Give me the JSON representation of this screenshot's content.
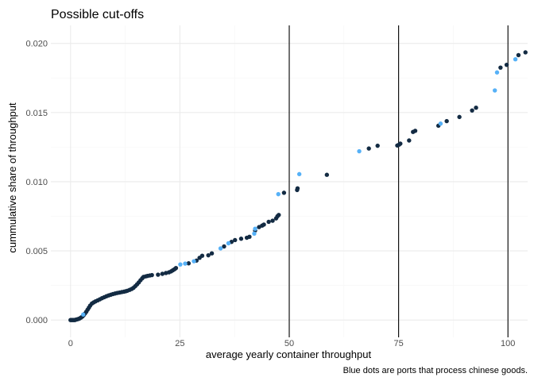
{
  "chart_data": {
    "type": "scatter",
    "title": "Possible cut-offs",
    "xlabel": "average yearly container throughput",
    "ylabel": "cummulative share of throughput",
    "caption": "Blue dots are ports that process chinese goods.",
    "xlim": [
      -4.5,
      104.5
    ],
    "ylim": [
      -0.00125,
      0.0213
    ],
    "x_ticks": [
      0,
      25,
      50,
      75,
      100
    ],
    "x_tick_labels": [
      "0",
      "25",
      "50",
      "75",
      "100"
    ],
    "y_ticks": [
      0.0,
      0.005,
      0.01,
      0.015,
      0.02
    ],
    "y_tick_labels": [
      "0.000",
      "0.005",
      "0.010",
      "0.015",
      "0.020"
    ],
    "vlines": [
      50,
      75,
      100
    ],
    "grid": true,
    "colors": {
      "default": "#132b43",
      "chinese": "#56b1f7",
      "vline": "#000000",
      "grid_major": "#ebebeb",
      "grid_minor": "#f5f5f5"
    },
    "series": [
      {
        "color": "#132b43",
        "points": [
          [
            0.0,
            0.0
          ],
          [
            0.2,
            0.0
          ],
          [
            0.4,
            0.0
          ],
          [
            0.6,
            0.0
          ],
          [
            0.8,
            0.0
          ],
          [
            1.0,
            0.0
          ],
          [
            1.2,
            3e-05
          ],
          [
            1.5,
            5e-05
          ],
          [
            1.8,
            8e-05
          ],
          [
            2.1,
            0.00012
          ],
          [
            2.4,
            0.00018
          ],
          [
            2.7,
            0.00025
          ],
          [
            3.0,
            0.00035
          ],
          [
            3.3,
            0.00047
          ],
          [
            3.6,
            0.0006
          ],
          [
            3.9,
            0.00075
          ],
          [
            4.2,
            0.0009
          ],
          [
            4.5,
            0.00105
          ],
          [
            4.9,
            0.0012
          ],
          [
            5.3,
            0.00128
          ],
          [
            5.7,
            0.00135
          ],
          [
            6.2,
            0.00142
          ],
          [
            6.7,
            0.0015
          ],
          [
            7.2,
            0.00158
          ],
          [
            7.7,
            0.00165
          ],
          [
            8.2,
            0.00172
          ],
          [
            8.7,
            0.00178
          ],
          [
            9.2,
            0.00183
          ],
          [
            9.7,
            0.00188
          ],
          [
            10.2,
            0.00192
          ],
          [
            10.7,
            0.00196
          ],
          [
            11.2,
            0.00199
          ],
          [
            11.7,
            0.00202
          ],
          [
            12.2,
            0.00205
          ],
          [
            12.6,
            0.00208
          ],
          [
            13.0,
            0.00212
          ],
          [
            13.5,
            0.00218
          ],
          [
            14.0,
            0.00225
          ],
          [
            14.4,
            0.00233
          ],
          [
            14.8,
            0.00245
          ],
          [
            15.2,
            0.00258
          ],
          [
            15.6,
            0.00272
          ],
          [
            16.0,
            0.00288
          ],
          [
            16.4,
            0.00302
          ],
          [
            16.7,
            0.00312
          ],
          [
            17.2,
            0.00316
          ],
          [
            17.6,
            0.00319
          ],
          [
            18.1,
            0.00322
          ],
          [
            18.6,
            0.00325
          ],
          [
            20.0,
            0.00328
          ],
          [
            21.0,
            0.00334
          ],
          [
            21.8,
            0.0034
          ],
          [
            22.5,
            0.00345
          ],
          [
            23.0,
            0.00352
          ],
          [
            23.4,
            0.0036
          ],
          [
            23.8,
            0.00368
          ],
          [
            24.1,
            0.00376
          ],
          [
            27.0,
            0.0041
          ],
          [
            28.8,
            0.0043
          ],
          [
            29.5,
            0.0045
          ],
          [
            30.1,
            0.00465
          ],
          [
            31.5,
            0.00468
          ],
          [
            32.3,
            0.00482
          ],
          [
            35.1,
            0.00532
          ],
          [
            36.8,
            0.00565
          ],
          [
            37.6,
            0.00578
          ],
          [
            39.0,
            0.00588
          ],
          [
            40.3,
            0.00595
          ],
          [
            40.9,
            0.00602
          ],
          [
            42.2,
            0.00648
          ],
          [
            43.1,
            0.00672
          ],
          [
            43.8,
            0.00683
          ],
          [
            44.2,
            0.0069
          ],
          [
            45.3,
            0.0071
          ],
          [
            46.2,
            0.00718
          ],
          [
            47.0,
            0.00735
          ],
          [
            47.3,
            0.0075
          ],
          [
            47.6,
            0.0076
          ],
          [
            48.8,
            0.0092
          ],
          [
            51.8,
            0.0094
          ],
          [
            51.9,
            0.00952
          ],
          [
            58.6,
            0.0105
          ],
          [
            68.2,
            0.0124
          ],
          [
            70.2,
            0.0126
          ],
          [
            74.7,
            0.01262
          ],
          [
            75.1,
            0.01268
          ],
          [
            75.4,
            0.01275
          ],
          [
            77.4,
            0.01298
          ],
          [
            78.3,
            0.0136
          ],
          [
            78.8,
            0.01368
          ],
          [
            84.1,
            0.01405
          ],
          [
            86.0,
            0.01438
          ],
          [
            88.9,
            0.01468
          ],
          [
            91.8,
            0.01515
          ],
          [
            92.7,
            0.01535
          ],
          [
            98.3,
            0.01825
          ],
          [
            99.7,
            0.01845
          ],
          [
            102.4,
            0.01915
          ],
          [
            104.0,
            0.01935
          ]
        ]
      },
      {
        "color": "#56b1f7",
        "points": [
          [
            2.9,
            0.0004
          ],
          [
            25.1,
            0.00402
          ],
          [
            26.2,
            0.00408
          ],
          [
            28.2,
            0.00425
          ],
          [
            34.3,
            0.00518
          ],
          [
            36.1,
            0.00555
          ],
          [
            42.0,
            0.00625
          ],
          [
            42.2,
            0.0066
          ],
          [
            47.5,
            0.0091
          ],
          [
            52.3,
            0.01055
          ],
          [
            66.0,
            0.0122
          ],
          [
            84.6,
            0.0142
          ],
          [
            97.0,
            0.0166
          ],
          [
            97.5,
            0.0179
          ],
          [
            101.7,
            0.01885
          ]
        ]
      }
    ]
  }
}
